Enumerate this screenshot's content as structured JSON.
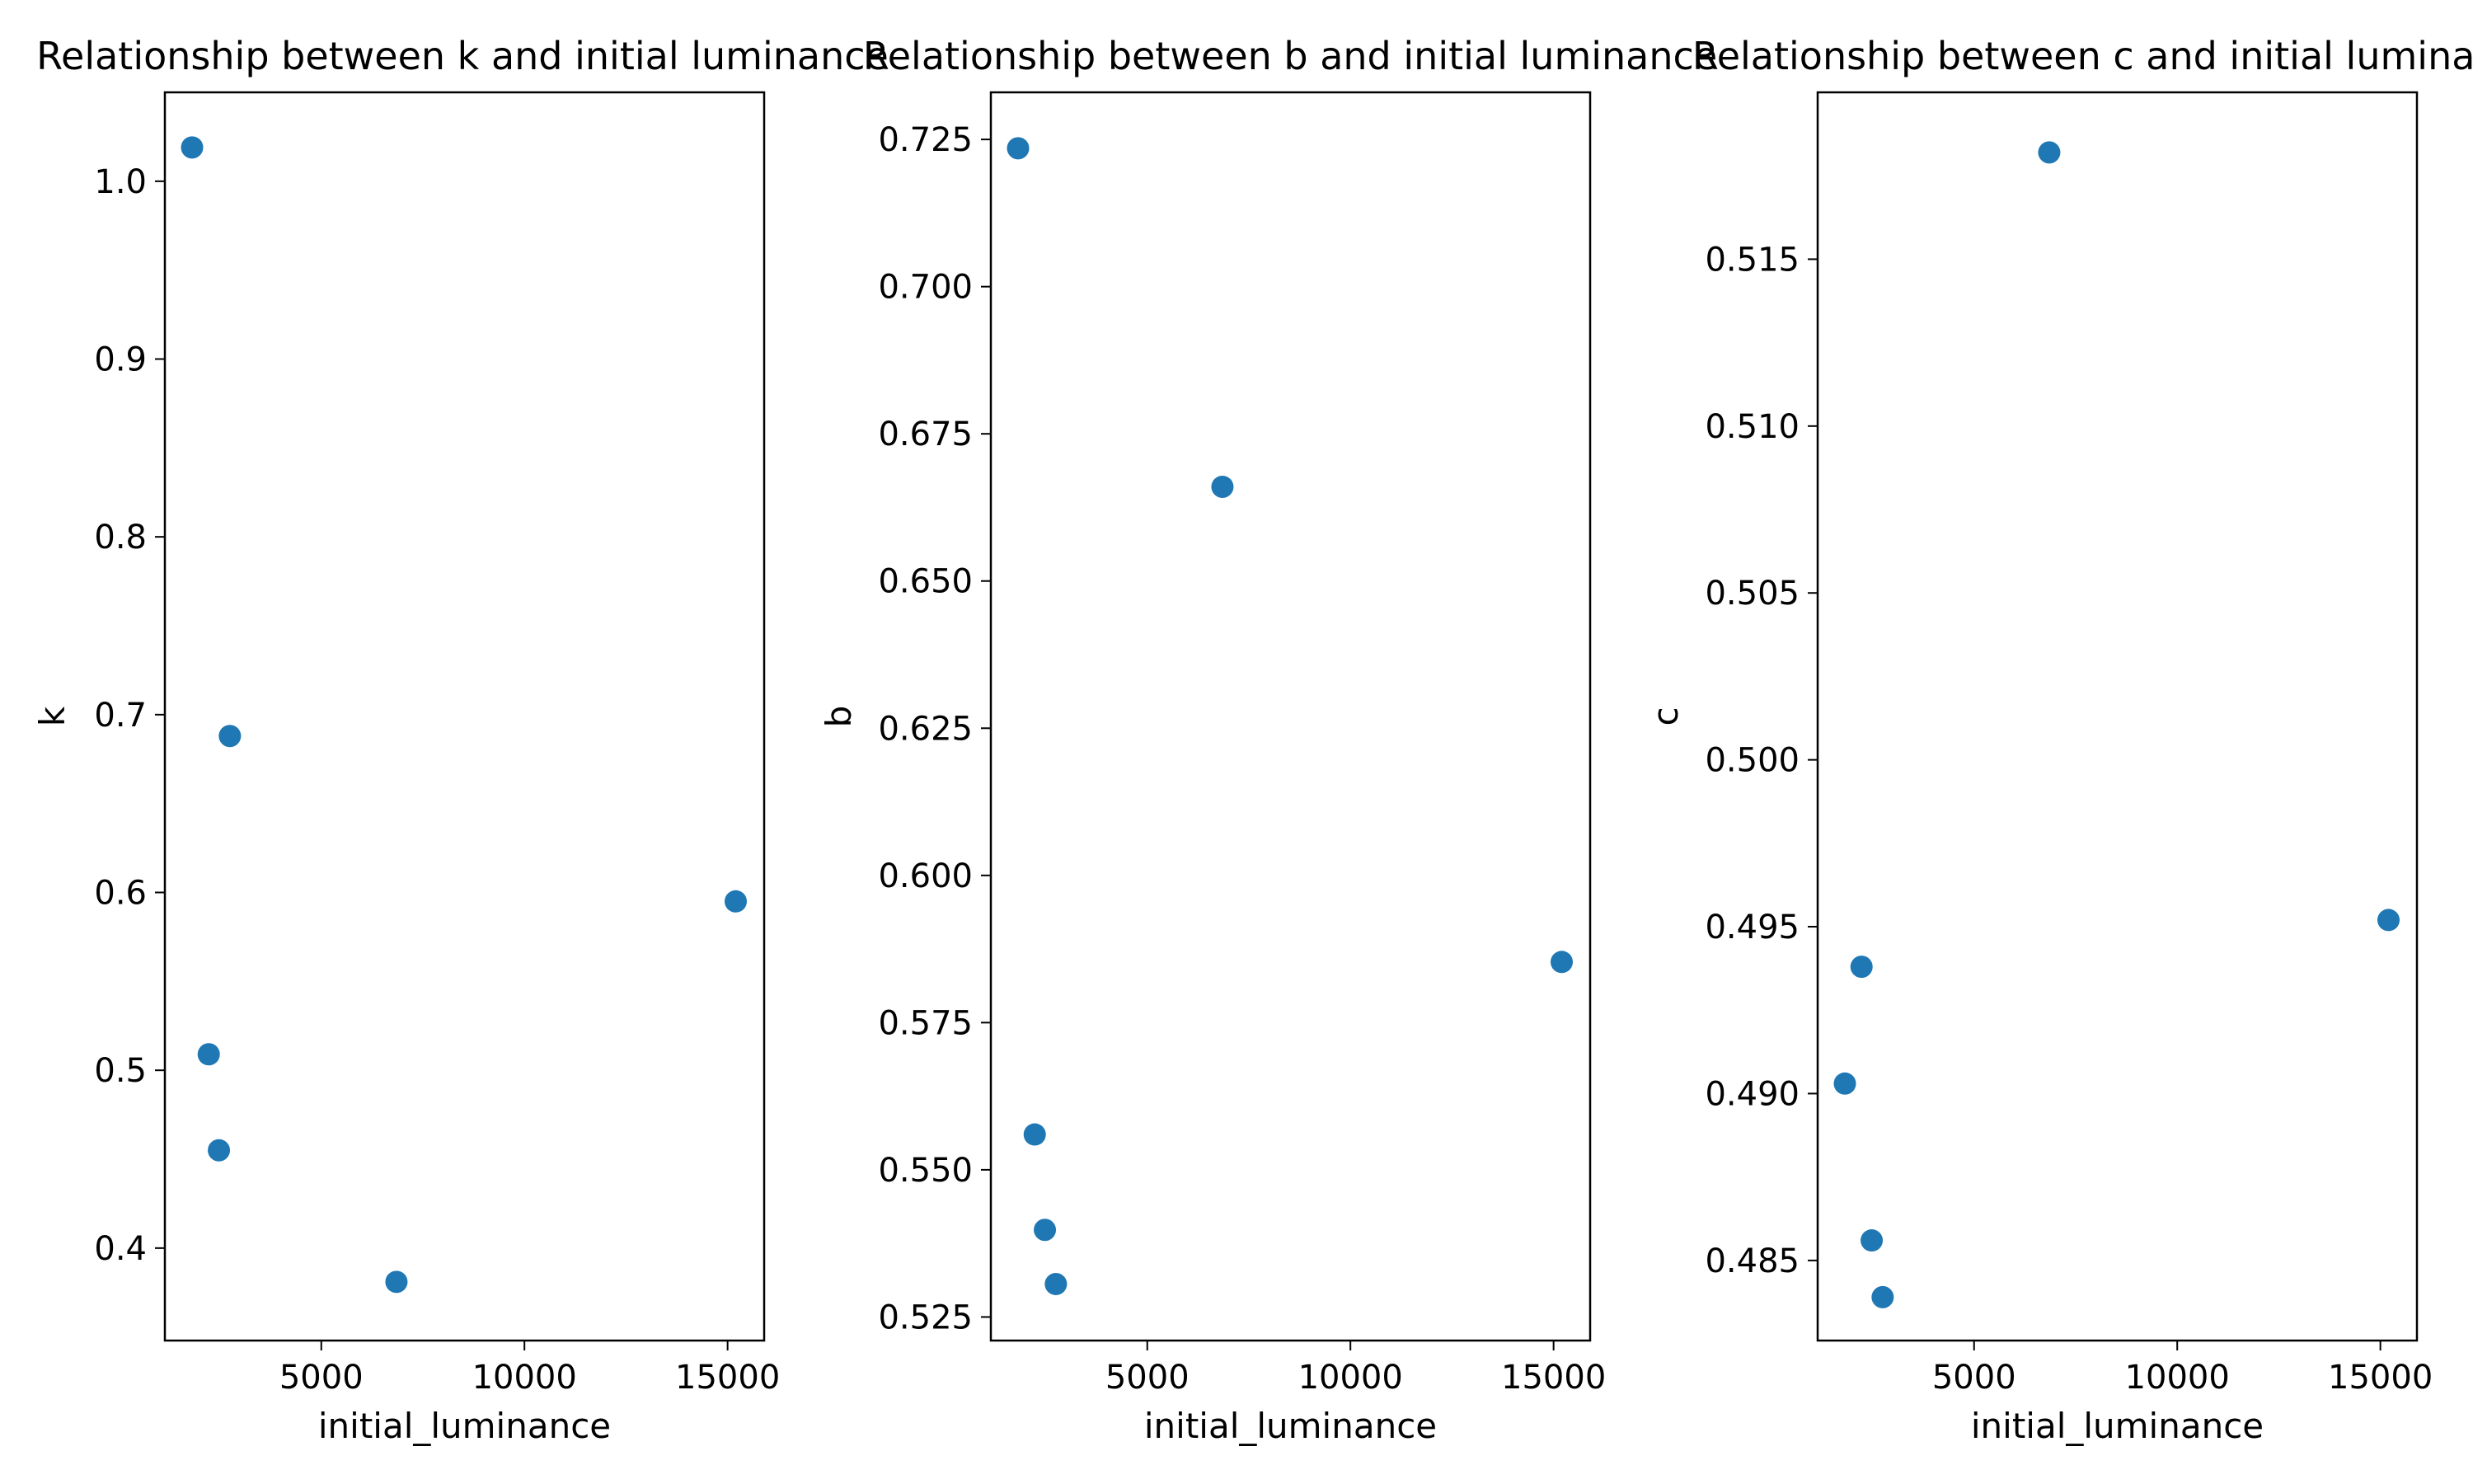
{
  "chart_data": [
    {
      "type": "scatter",
      "title": "Relationship between k and initial luminance",
      "xlabel": "initial_luminance",
      "ylabel": "k",
      "xlim": [
        1150,
        15900
      ],
      "ylim": [
        0.348,
        1.05
      ],
      "xticks": [
        5000,
        10000,
        15000
      ],
      "xtick_labels": [
        "5000",
        "10000",
        "15000"
      ],
      "yticks": [
        0.4,
        0.5,
        0.6,
        0.7,
        0.8,
        0.9,
        1.0
      ],
      "ytick_labels": [
        "0.4",
        "0.5",
        "0.6",
        "0.7",
        "0.8",
        "0.9",
        "1.0"
      ],
      "x": [
        1820,
        2230,
        2480,
        2750,
        6850,
        15200
      ],
      "y": [
        1.019,
        0.509,
        0.455,
        0.688,
        0.381,
        0.595
      ],
      "marker_color": "#1f77b4"
    },
    {
      "type": "scatter",
      "title": "Relationship between b and initial luminance",
      "xlabel": "initial_luminance",
      "ylabel": "b",
      "xlim": [
        1150,
        15900
      ],
      "ylim": [
        0.521,
        0.733
      ],
      "xticks": [
        5000,
        10000,
        15000
      ],
      "xtick_labels": [
        "5000",
        "10000",
        "15000"
      ],
      "yticks": [
        0.525,
        0.55,
        0.575,
        0.6,
        0.625,
        0.65,
        0.675,
        0.7,
        0.725
      ],
      "ytick_labels": [
        "0.525",
        "0.550",
        "0.575",
        "0.600",
        "0.625",
        "0.650",
        "0.675",
        "0.700",
        "0.725"
      ],
      "x": [
        1820,
        2230,
        2480,
        2750,
        6850,
        15200
      ],
      "y": [
        0.7235,
        0.556,
        0.5398,
        0.5306,
        0.666,
        0.5853
      ],
      "marker_color": "#1f77b4"
    },
    {
      "type": "scatter",
      "title": "Relationship between c and initial luminance",
      "xlabel": "initial_luminance",
      "ylabel": "c",
      "xlim": [
        1150,
        15900
      ],
      "ylim": [
        0.4826,
        0.52
      ],
      "xticks": [
        5000,
        10000,
        15000
      ],
      "xtick_labels": [
        "5000",
        "10000",
        "15000"
      ],
      "yticks": [
        0.485,
        0.49,
        0.495,
        0.5,
        0.505,
        0.51,
        0.515
      ],
      "ytick_labels": [
        "0.485",
        "0.490",
        "0.495",
        "0.500",
        "0.505",
        "0.510",
        "0.515"
      ],
      "x": [
        1820,
        2230,
        2480,
        2750,
        6850,
        15200
      ],
      "y": [
        0.4903,
        0.4938,
        0.4856,
        0.4839,
        0.5182,
        0.4952
      ],
      "marker_color": "#1f77b4"
    }
  ]
}
